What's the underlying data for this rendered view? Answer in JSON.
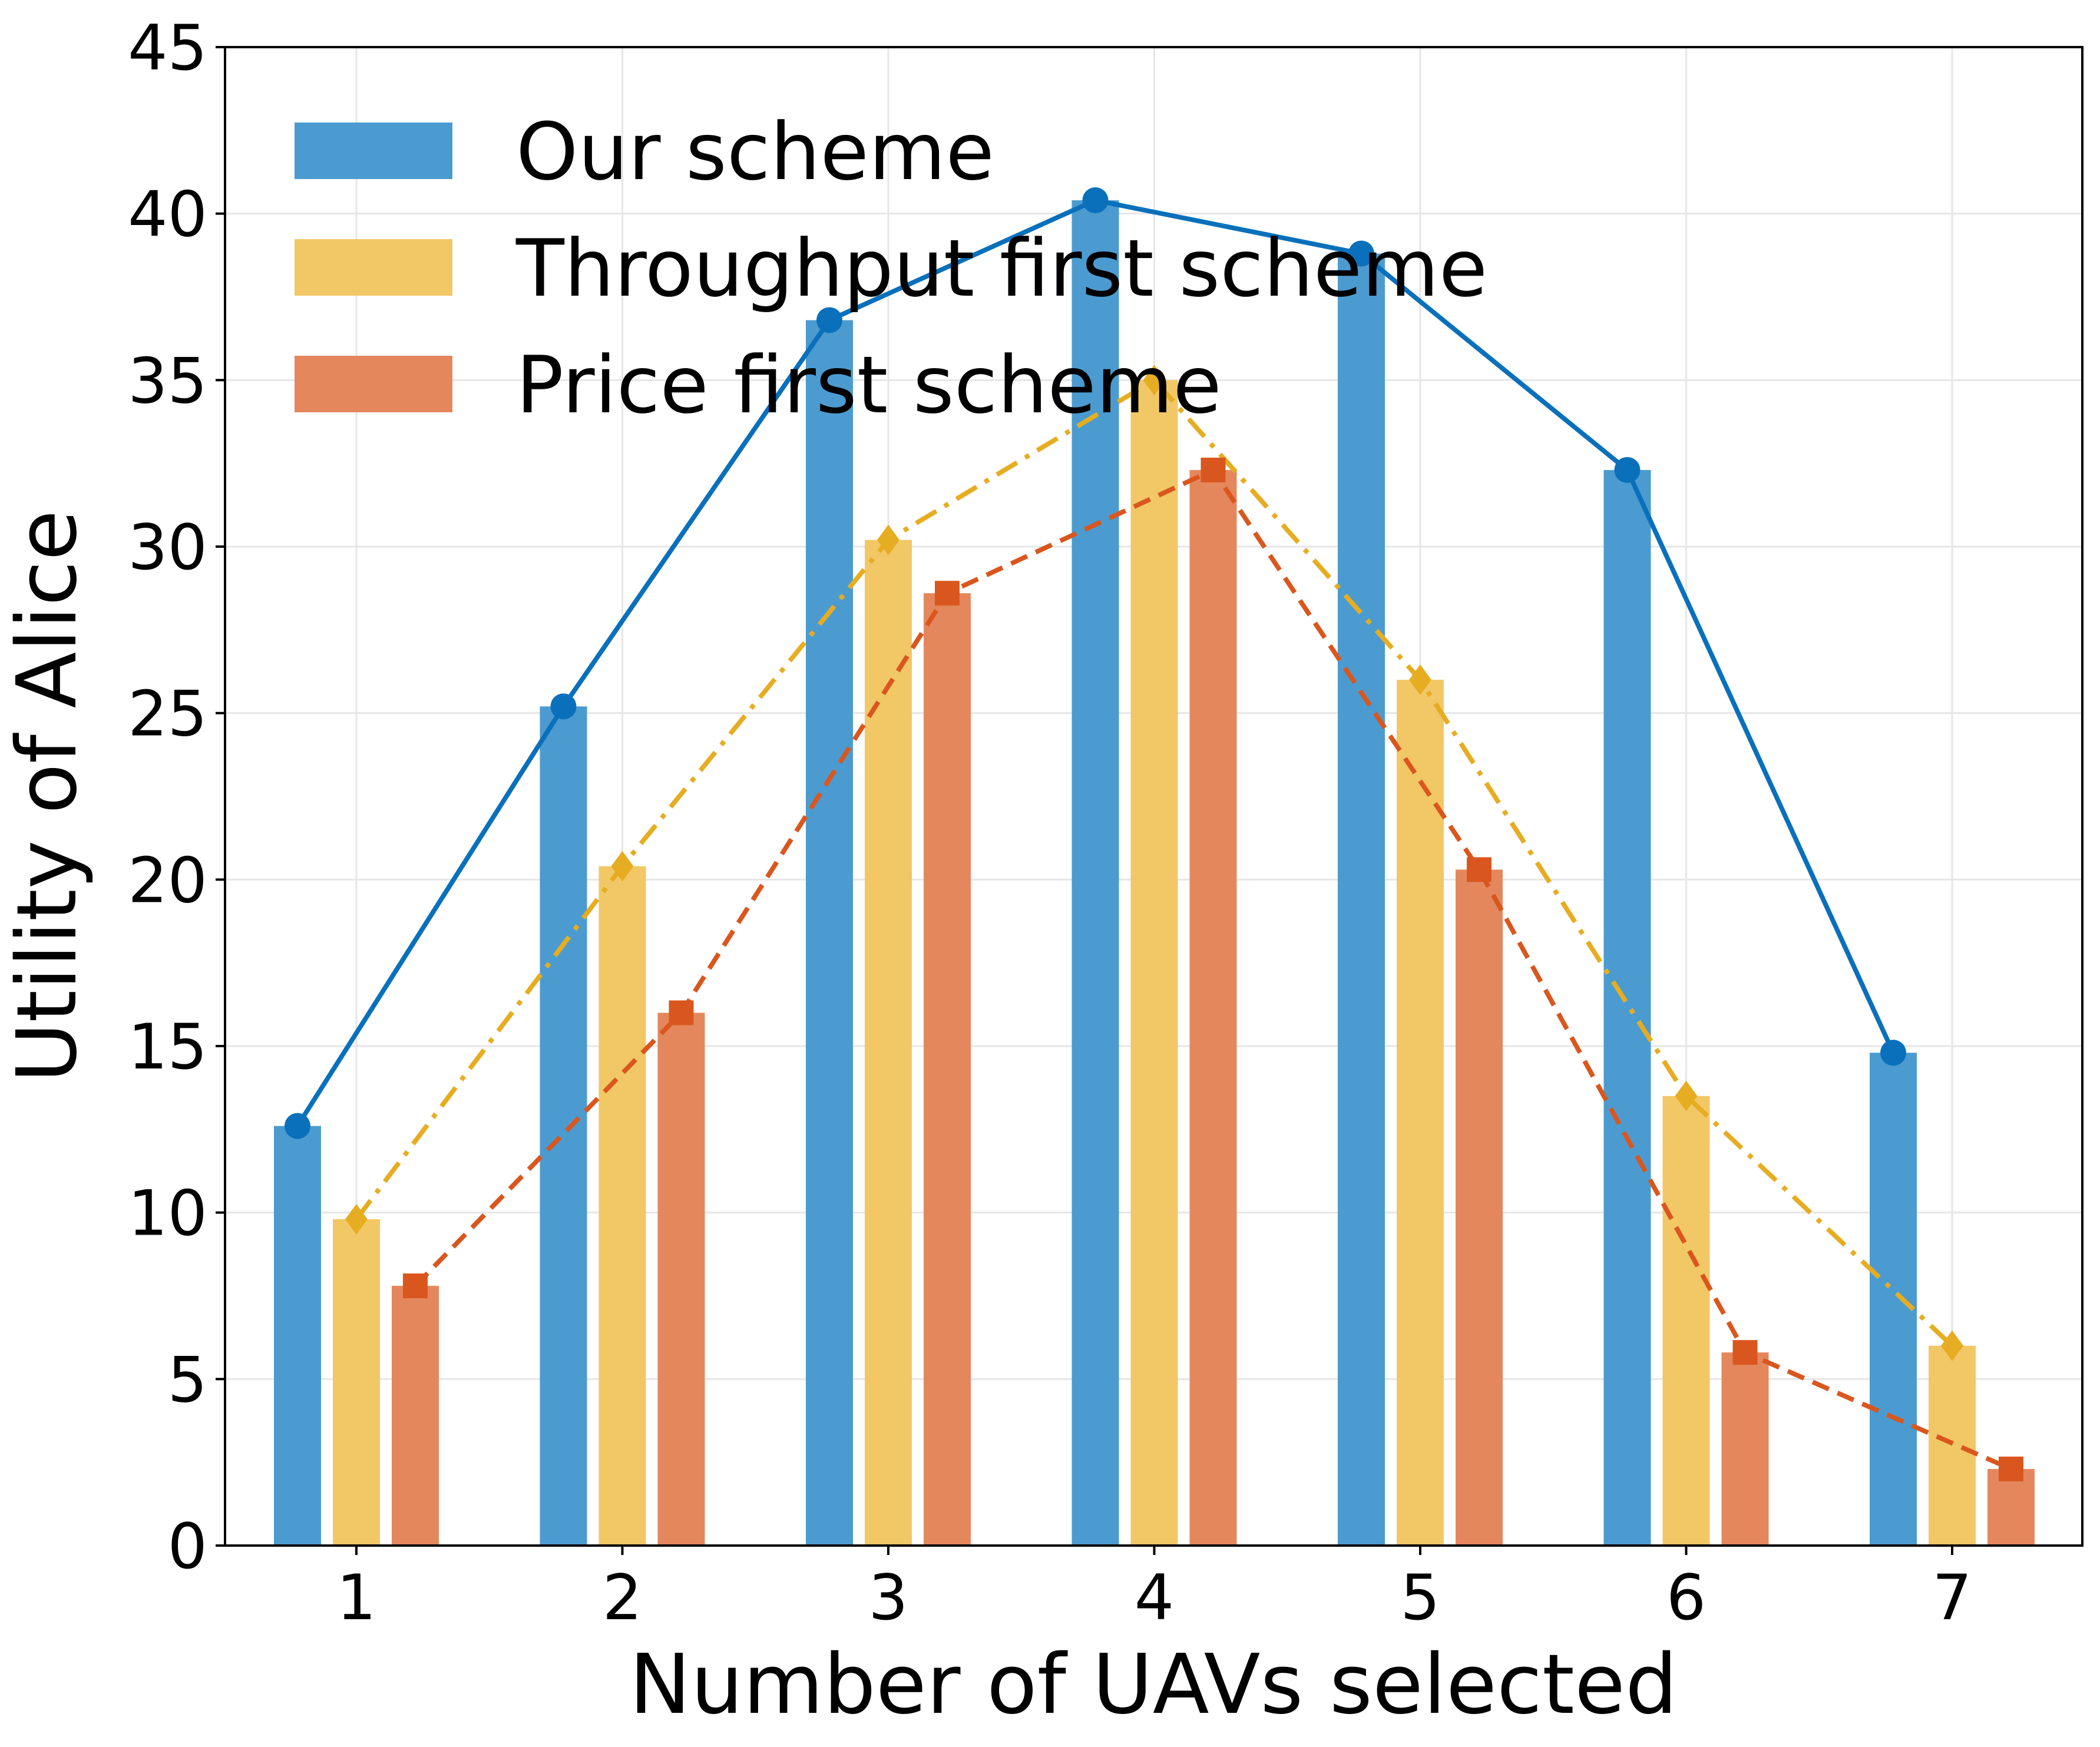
{
  "chart_data": {
    "type": "bar",
    "xlabel": "Number of UAVs selected",
    "ylabel": "Utility of Alice",
    "categories": [
      "1",
      "2",
      "3",
      "4",
      "5",
      "6",
      "7"
    ],
    "ylim": [
      0,
      45
    ],
    "yticks": [
      "0",
      "5",
      "10",
      "15",
      "20",
      "25",
      "30",
      "35",
      "40",
      "45"
    ],
    "grid": true,
    "legend_position": "top-left",
    "series": [
      {
        "name": "Our scheme",
        "color": "#4b9bd0",
        "line_color": "#0a70bb",
        "marker": "circle",
        "line_style": "solid",
        "values": [
          12.6,
          25.2,
          36.8,
          40.4,
          38.8,
          32.3,
          14.8
        ]
      },
      {
        "name": "Throughput first scheme",
        "color": "#f2c766",
        "line_color": "#e6ad22",
        "marker": "diamond",
        "line_style": "dashdot",
        "values": [
          9.8,
          20.4,
          30.2,
          35.0,
          26.0,
          13.5,
          6.0
        ]
      },
      {
        "name": "Price first scheme",
        "color": "#e5875d",
        "line_color": "#d9571e",
        "marker": "square",
        "line_style": "dashed",
        "values": [
          7.8,
          16.0,
          28.6,
          32.3,
          20.3,
          5.8,
          2.3
        ]
      }
    ]
  }
}
